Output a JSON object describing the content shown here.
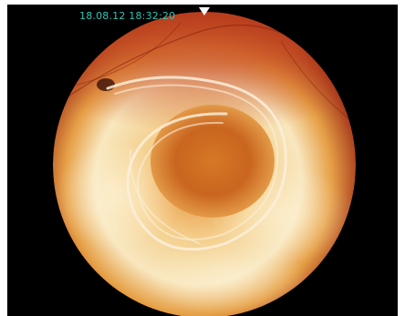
{
  "image": {
    "description_tag": "endoscopic-circular-view",
    "timestamp": "18.08.12 18:32:20",
    "colors": {
      "background": "#000000",
      "timestamp_text": "#2ec4b6",
      "tissue_outer": "#a8341c",
      "tissue_mid": "#e08a3a",
      "tissue_light": "#f6dfb0",
      "center": "#d9782c"
    }
  }
}
